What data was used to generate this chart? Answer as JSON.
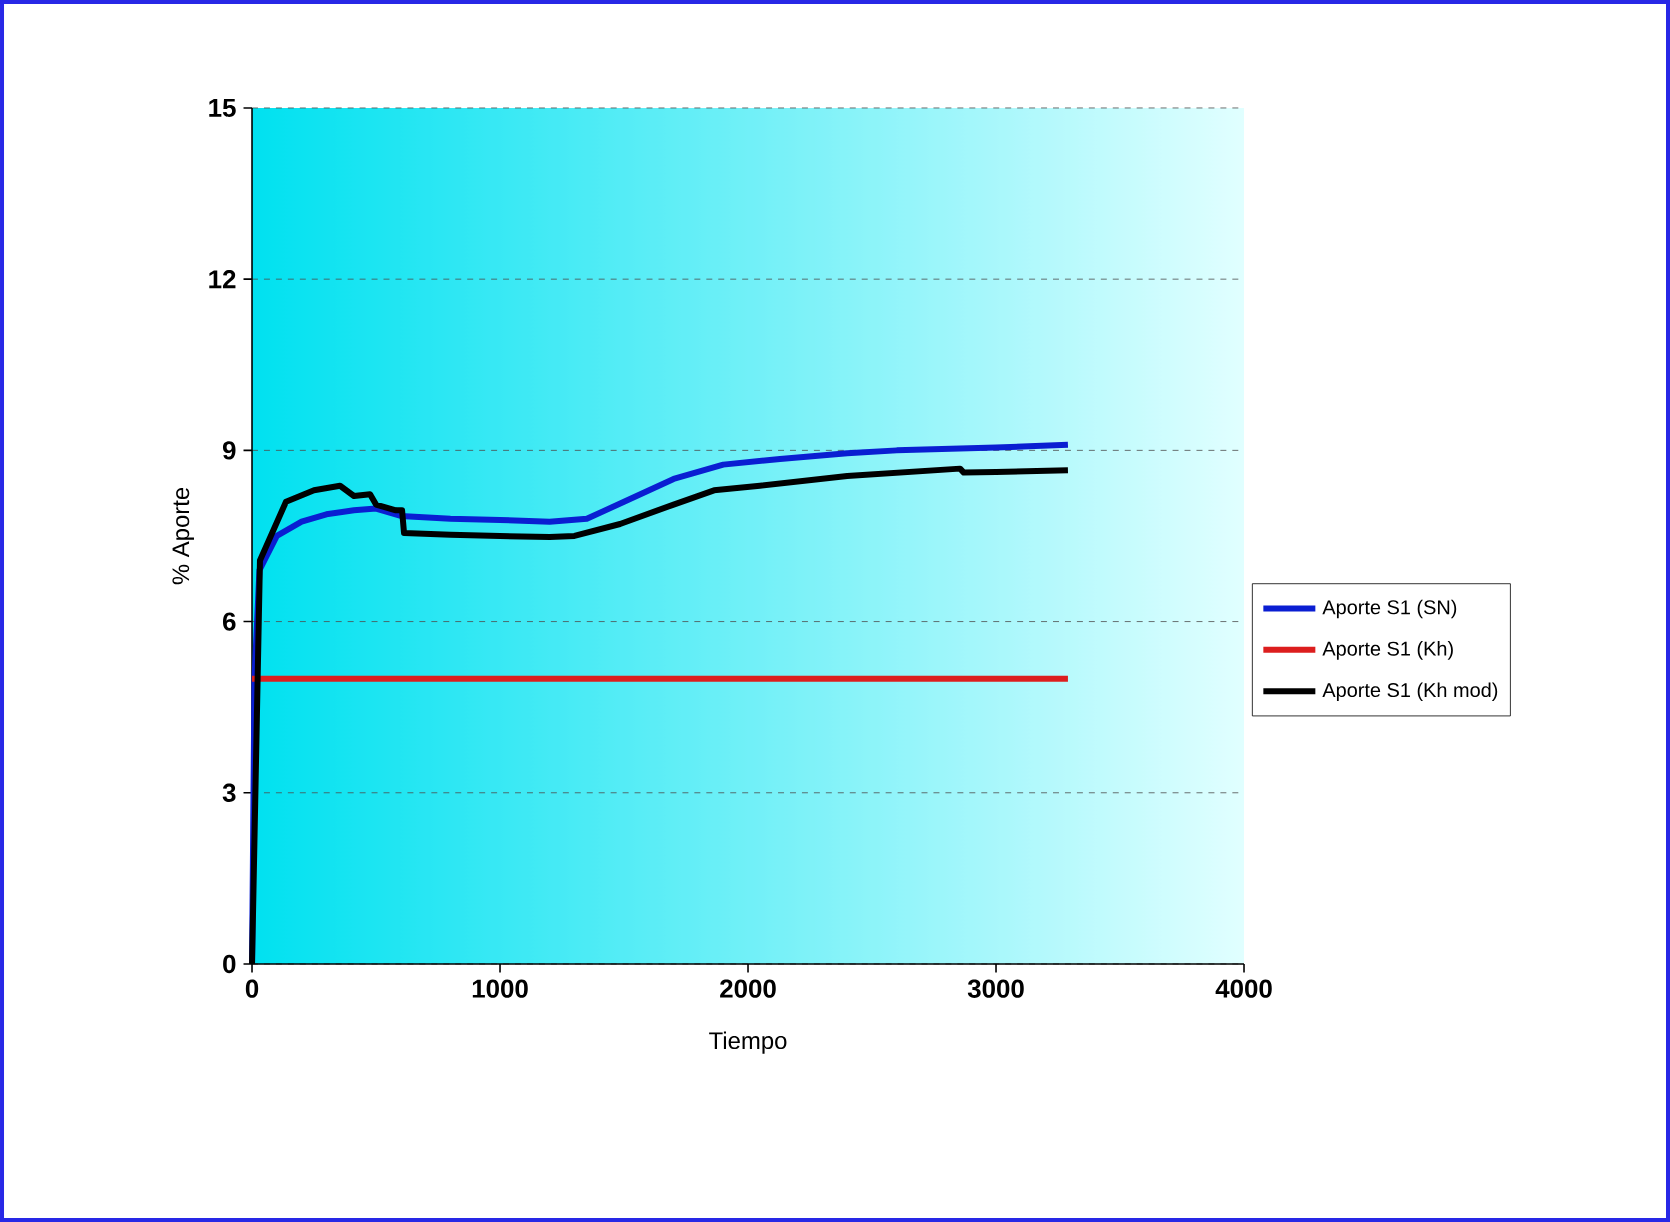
{
  "chart_data": {
    "type": "line",
    "xlabel": "Tiempo",
    "ylabel": "% Aporte",
    "xlim": [
      0,
      4000
    ],
    "ylim": [
      0,
      15
    ],
    "xticks": [
      0,
      1000,
      2000,
      3000,
      4000
    ],
    "yticks": [
      0,
      3,
      6,
      9,
      12,
      15
    ],
    "grid": "y",
    "legend": "right",
    "line_style": "solid",
    "series": [
      {
        "name": "Aporte S1 (SN)",
        "color": "#0a1ed2",
        "x": [
          0,
          10,
          30,
          100,
          200,
          300,
          411,
          500,
          600,
          800,
          1000,
          1200,
          1350,
          1500,
          1700,
          1900,
          2129,
          2400,
          2600,
          3000,
          3290
        ],
        "values": [
          0,
          5,
          6.9,
          7.5,
          7.75,
          7.88,
          7.95,
          7.98,
          7.85,
          7.8,
          7.78,
          7.75,
          7.8,
          8.1,
          8.5,
          8.75,
          8.85,
          8.95,
          9.0,
          9.05,
          9.1
        ]
      },
      {
        "name": "Aporte S1 (Kh)",
        "color": "#dc1e1e",
        "x": [
          0,
          3290
        ],
        "values": [
          5,
          5
        ]
      },
      {
        "name": "Aporte S1 (Kh mod)",
        "color": "#000000",
        "x": [
          0,
          32,
          137,
          250,
          355,
          411,
          476,
          500,
          580,
          605,
          613,
          800,
          1000,
          1200,
          1300,
          1484,
          1700,
          1863,
          2048,
          2400,
          2855,
          2870,
          3000,
          3290
        ],
        "values": [
          0,
          7.07,
          8.1,
          8.3,
          8.38,
          8.2,
          8.23,
          8.05,
          7.95,
          7.95,
          7.55,
          7.52,
          7.5,
          7.48,
          7.5,
          7.71,
          8.05,
          8.3,
          8.38,
          8.55,
          8.68,
          8.61,
          8.62,
          8.65
        ]
      }
    ]
  }
}
